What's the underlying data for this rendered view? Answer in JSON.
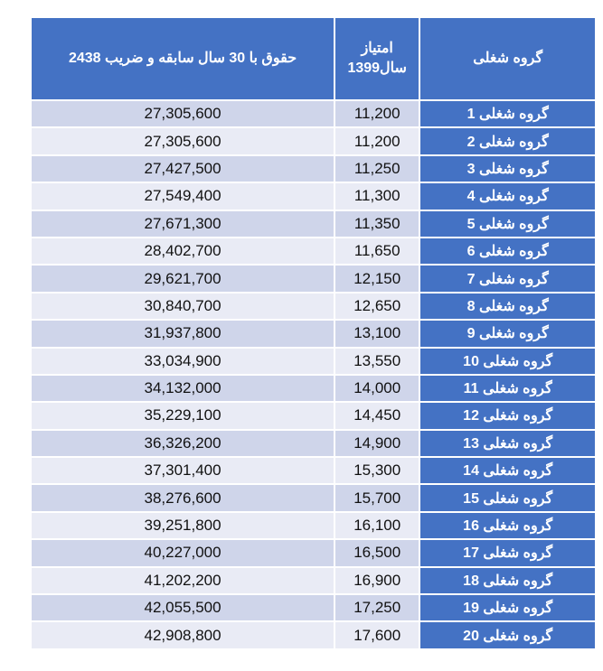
{
  "header": {
    "salary": "حقوق با 30 سال سابقه و ضریب 2438",
    "score_line1": "امتیاز",
    "score_line2": "سال1399",
    "group": "گروه شغلی"
  },
  "colors": {
    "header": "#4472C4",
    "row_odd": "#CFD5EA",
    "row_even": "#E9EBF5"
  },
  "rows": [
    {
      "group": "گروه شغلی 1",
      "score": "11,200",
      "salary": "27,305,600"
    },
    {
      "group": "گروه شغلی 2",
      "score": "11,200",
      "salary": "27,305,600"
    },
    {
      "group": "گروه شغلی 3",
      "score": "11,250",
      "salary": "27,427,500"
    },
    {
      "group": "گروه شغلی 4",
      "score": "11,300",
      "salary": "27,549,400"
    },
    {
      "group": "گروه شغلی 5",
      "score": "11,350",
      "salary": "27,671,300"
    },
    {
      "group": "گروه شغلی 6",
      "score": "11,650",
      "salary": "28,402,700"
    },
    {
      "group": "گروه شغلی 7",
      "score": "12,150",
      "salary": "29,621,700"
    },
    {
      "group": "گروه شغلی 8",
      "score": "12,650",
      "salary": "30,840,700"
    },
    {
      "group": "گروه شغلی 9",
      "score": "13,100",
      "salary": "31,937,800"
    },
    {
      "group": "گروه شغلی 10",
      "score": "13,550",
      "salary": "33,034,900"
    },
    {
      "group": "گروه شغلی 11",
      "score": "14,000",
      "salary": "34,132,000"
    },
    {
      "group": "گروه شغلی 12",
      "score": "14,450",
      "salary": "35,229,100"
    },
    {
      "group": "گروه شغلی 13",
      "score": "14,900",
      "salary": "36,326,200"
    },
    {
      "group": "گروه شغلی 14",
      "score": "15,300",
      "salary": "37,301,400"
    },
    {
      "group": "گروه شغلی 15",
      "score": "15,700",
      "salary": "38,276,600"
    },
    {
      "group": "گروه شغلی 16",
      "score": "16,100",
      "salary": "39,251,800"
    },
    {
      "group": "گروه شغلی 17",
      "score": "16,500",
      "salary": "40,227,000"
    },
    {
      "group": "گروه شغلی 18",
      "score": "16,900",
      "salary": "41,202,200"
    },
    {
      "group": "گروه شغلی 19",
      "score": "17,250",
      "salary": "42,055,500"
    },
    {
      "group": "گروه شغلی 20",
      "score": "17,600",
      "salary": "42,908,800"
    }
  ]
}
